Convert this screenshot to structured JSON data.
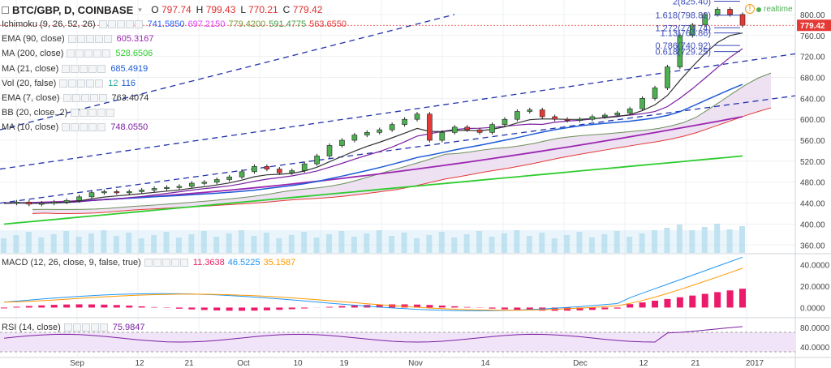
{
  "header": {
    "symbol": "BTC/GBP, D, COINBASE",
    "open_label": "O",
    "open": "797.74",
    "high_label": "H",
    "high": "799.43",
    "low_label": "L",
    "low": "770.21",
    "close_label": "C",
    "close": "779.42",
    "realtime_label": "realtime",
    "warning_glyph": "!"
  },
  "indicators": [
    {
      "label": "Ichimoku (9, 26, 52, 26)",
      "values": [
        "741.5850",
        "697.2150",
        "779.4200",
        "591.4775",
        "563.6550"
      ],
      "colors": [
        "#2962ff",
        "#e040fb",
        "#7a9a3a",
        "#43a047",
        "#e53935"
      ]
    },
    {
      "label": "EMA (90, close)",
      "values": [
        "605.3167"
      ],
      "colors": [
        "#9c27b0"
      ]
    },
    {
      "label": "MA (200, close)",
      "values": [
        "528.6506"
      ],
      "colors": [
        "#2ecc2e"
      ]
    },
    {
      "label": "MA (21, close)",
      "values": [
        "685.4919"
      ],
      "colors": [
        "#1e5bd6"
      ]
    },
    {
      "label": "Vol (20, false)",
      "values": [
        "12",
        "116"
      ],
      "colors": [
        "#26a69a",
        "#1e5bd6"
      ]
    },
    {
      "label": "EMA (7, close)",
      "values": [
        "763.4074"
      ],
      "colors": [
        "#333333"
      ]
    },
    {
      "label": "BB (20, close, 2)",
      "values": [],
      "colors": []
    },
    {
      "label": "MA (10, close)",
      "values": [
        "748.0550"
      ],
      "colors": [
        "#7b1fa2"
      ]
    }
  ],
  "macd_legend": {
    "label": "MACD (12, 26, close, 9, false, true)",
    "values": [
      "11.3638",
      "46.5225",
      "35.1587"
    ],
    "colors": [
      "#e91e63",
      "#2196f3",
      "#ff9800"
    ]
  },
  "rsi_legend": {
    "label": "RSI (14, close)",
    "values": [
      "75.9847"
    ],
    "colors": [
      "#7b1fa2"
    ]
  },
  "colors": {
    "up": "#4caf50",
    "down": "#e53935",
    "price_line": "#e53935",
    "channel": "#2233aa",
    "fib": "#3b4bb8",
    "macd_hist": "#ec1a6a",
    "rsi_band": "#f1e4f8"
  },
  "chart_data": {
    "type": "candlestick",
    "x_tick_labels": [
      "Sep",
      "12",
      "21",
      "Oct",
      "10",
      "19",
      "Nov",
      "14",
      "Dec",
      "12",
      "21",
      "2017"
    ],
    "price_axis_ticks": [
      "800.00",
      "760.00",
      "720.00",
      "680.00",
      "640.00",
      "600.00",
      "560.00",
      "520.00",
      "480.00",
      "440.00",
      "400.00",
      "360.00"
    ],
    "price_range": [
      345,
      820
    ],
    "last_price": "779.42",
    "price_series_approx": [
      440,
      442,
      438,
      440,
      442,
      445,
      452,
      460,
      462,
      460,
      462,
      465,
      468,
      470,
      472,
      478,
      480,
      485,
      490,
      500,
      510,
      505,
      498,
      502,
      515,
      530,
      550,
      560,
      570,
      575,
      580,
      590,
      600,
      610,
      560,
      575,
      585,
      580,
      575,
      590,
      600,
      615,
      618,
      605,
      600,
      598,
      600,
      605,
      608,
      612,
      620,
      640,
      660,
      700,
      760,
      780,
      800,
      810,
      800,
      779.42
    ],
    "fib_levels": [
      {
        "label": "2(825.40)",
        "value": 825.4
      },
      {
        "label": "1.618(798.82)",
        "value": 798.82
      },
      {
        "label": "1.272(774.74)",
        "value": 774.74
      },
      {
        "label": "1.13(764.86)",
        "value": 764.86
      },
      {
        "label": "0.786(740.92)",
        "value": 740.92
      },
      {
        "label": "0.618(729.25)",
        "value": 729.25
      }
    ],
    "macd_axis_ticks": [
      "40.0000",
      "20.0000",
      "0.0000"
    ],
    "macd_values": {
      "histogram": "11.3638",
      "macd": "46.5225",
      "signal": "35.1587"
    },
    "rsi_axis_ticks": [
      "80.0000",
      "40.0000"
    ],
    "rsi_value": "75.9847"
  }
}
